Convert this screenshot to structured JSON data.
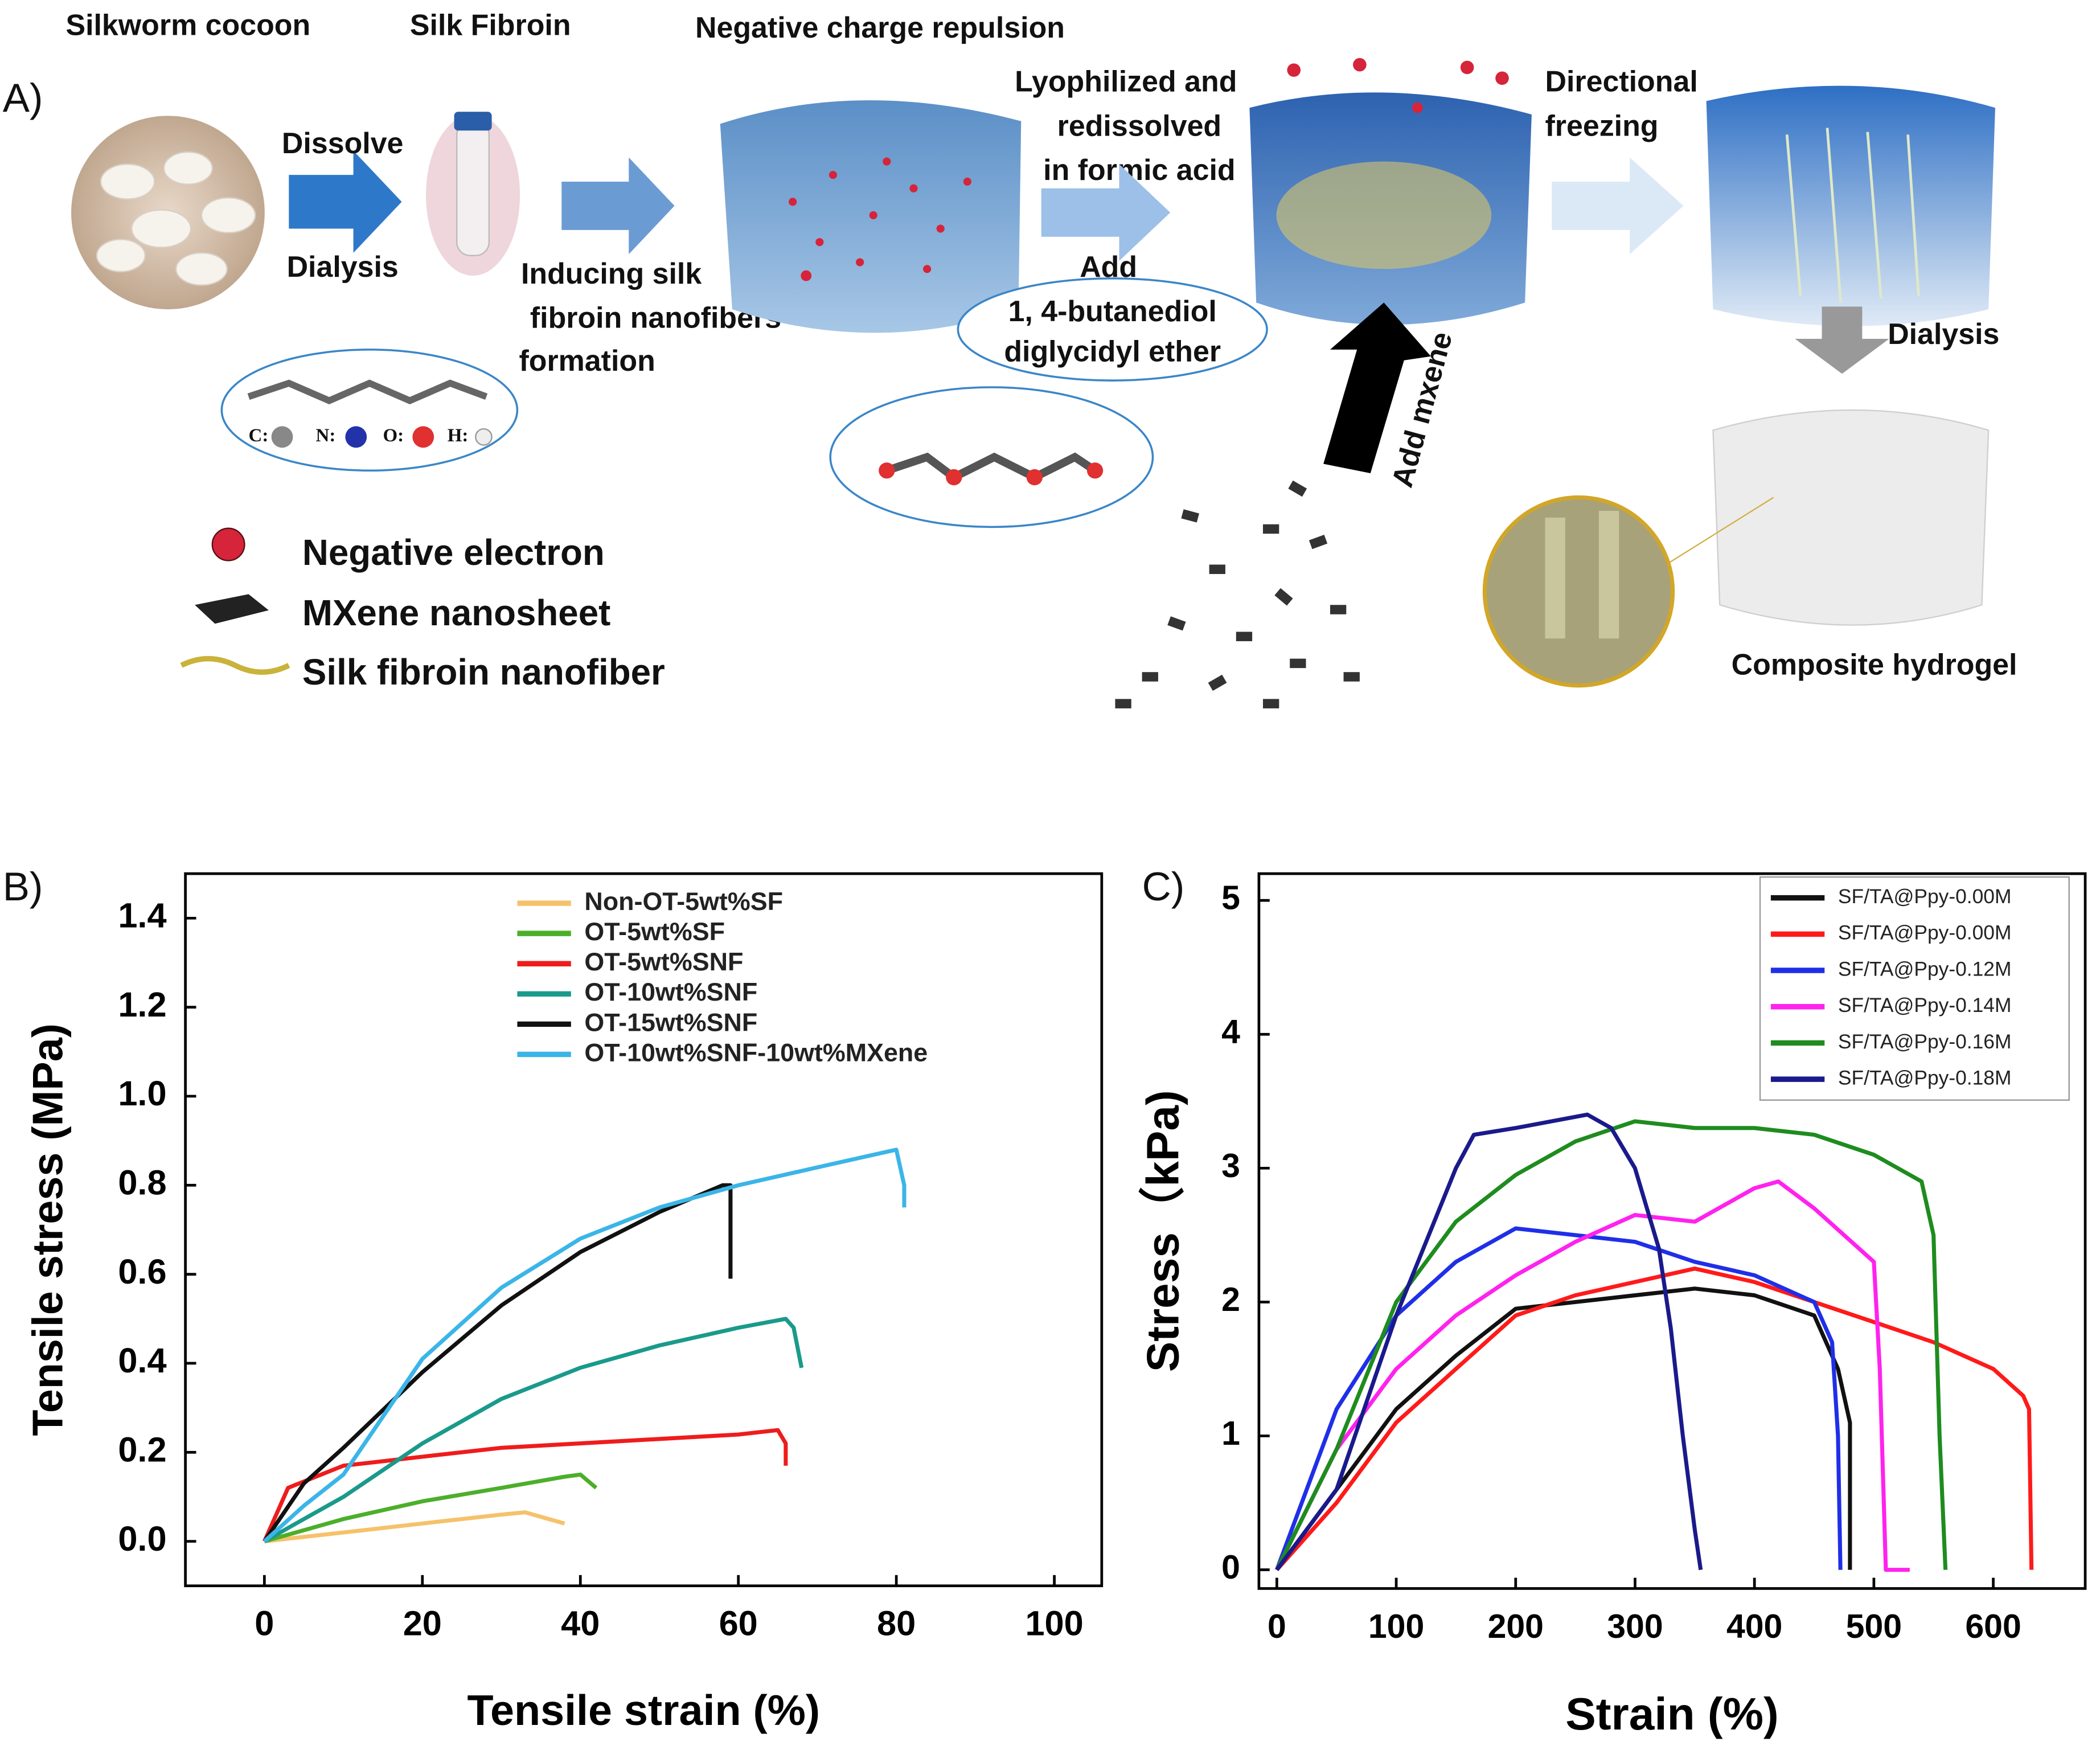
{
  "panel_labels": [
    "A)",
    "B)",
    "C)"
  ],
  "diagram": {
    "headers": [
      "Silkworm cocoon",
      "Silk Fibroin",
      "Negative charge repulsion"
    ],
    "dissolve": "Dissolve",
    "dialysis_first": "Dialysis",
    "inducing": [
      "Inducing silk",
      "fibroin nanofibers",
      "formation"
    ],
    "lyophilized": [
      "Lyophilized and",
      "redissolved",
      "in formic acid"
    ],
    "add": "Add",
    "crosslinker": [
      "1, 4-butanediol",
      "diglycidyl ether"
    ],
    "directional": [
      "Directional",
      "freezing"
    ],
    "add_mxene": "Add mxene",
    "dialysis_second": "Dialysis",
    "product": "Composite hydrogel",
    "atoms": [
      "C:",
      "N:",
      "O:",
      "H:"
    ],
    "legend": [
      "Negative electron",
      "MXene nanosheet",
      "Silk fibroin nanofiber"
    ]
  },
  "chart_data": [
    {
      "type": "line",
      "xlabel": "Tensile strain (%)",
      "ylabel": "Tensile stress (MPa)",
      "xlim": [
        -10,
        106
      ],
      "xticks": [
        0,
        20,
        40,
        60,
        80,
        100
      ],
      "ylim": [
        -0.1,
        1.5
      ],
      "yticks": [
        {
          "value": 0,
          "label": "0.0"
        },
        0.2,
        0.4,
        0.6,
        0.8,
        {
          "value": 1,
          "label": "1.0"
        },
        1.2,
        1.4
      ],
      "legend": "upper right",
      "series": [
        {
          "name": "Non-OT-5wt%SF",
          "color": "#f5c26b",
          "x": [
            0,
            10,
            20,
            30,
            33,
            36,
            38
          ],
          "values": [
            0,
            0.02,
            0.04,
            0.06,
            0.065,
            0.05,
            0.04
          ]
        },
        {
          "name": "OT-5wt%SF",
          "color": "#4caf2a",
          "x": [
            0,
            10,
            20,
            30,
            38,
            40,
            42
          ],
          "values": [
            0,
            0.05,
            0.09,
            0.12,
            0.145,
            0.15,
            0.12
          ]
        },
        {
          "name": "OT-5wt%SNF",
          "color": "#ee1c1c",
          "x": [
            0,
            3,
            10,
            20,
            30,
            40,
            50,
            60,
            65,
            66,
            66
          ],
          "values": [
            0,
            0.12,
            0.17,
            0.19,
            0.21,
            0.22,
            0.23,
            0.24,
            0.25,
            0.22,
            0.17
          ]
        },
        {
          "name": "OT-10wt%SNF",
          "color": "#1a9a8a",
          "x": [
            0,
            5,
            10,
            20,
            30,
            40,
            50,
            60,
            66,
            67,
            68
          ],
          "values": [
            0,
            0.05,
            0.1,
            0.22,
            0.32,
            0.39,
            0.44,
            0.48,
            0.5,
            0.48,
            0.39
          ]
        },
        {
          "name": "OT-15wt%SNF",
          "color": "#111111",
          "x": [
            0,
            5,
            10,
            20,
            30,
            40,
            50,
            58,
            59,
            59
          ],
          "values": [
            0,
            0.13,
            0.21,
            0.38,
            0.53,
            0.65,
            0.74,
            0.8,
            0.8,
            0.59
          ]
        },
        {
          "name": "OT-10wt%SNF-10wt%MXene",
          "color": "#3bb5e8",
          "x": [
            0,
            5,
            10,
            15,
            20,
            30,
            40,
            50,
            60,
            70,
            80,
            81,
            81
          ],
          "values": [
            0,
            0.08,
            0.15,
            0.28,
            0.41,
            0.57,
            0.68,
            0.75,
            0.8,
            0.84,
            0.88,
            0.8,
            0.75
          ]
        }
      ]
    },
    {
      "type": "line",
      "xlabel": "Strain (%)",
      "ylabel": "Stress（kPa)",
      "xlim": [
        -15,
        677
      ],
      "xticks": [
        0,
        100,
        200,
        300,
        400,
        500,
        600
      ],
      "ylim": [
        -0.14,
        5.2
      ],
      "yticks": [
        0,
        1,
        2,
        3,
        4,
        5
      ],
      "legend": "upper right",
      "legend_frame": true,
      "series": [
        {
          "name": "SF/TA@Ppy-0.00M",
          "color": "#111111",
          "x": [
            0,
            50,
            100,
            150,
            200,
            250,
            300,
            350,
            400,
            450,
            470,
            480,
            480
          ],
          "values": [
            0,
            0.6,
            1.2,
            1.6,
            1.95,
            2.0,
            2.05,
            2.1,
            2.05,
            1.9,
            1.5,
            1.1,
            0
          ]
        },
        {
          "name": "SF/TA@Ppy-0.00M",
          "color": "#ff1a1a",
          "x": [
            0,
            50,
            100,
            150,
            200,
            250,
            300,
            350,
            400,
            450,
            500,
            550,
            600,
            625,
            630,
            632
          ],
          "values": [
            0,
            0.5,
            1.1,
            1.5,
            1.9,
            2.05,
            2.15,
            2.25,
            2.15,
            2.0,
            1.85,
            1.7,
            1.5,
            1.3,
            1.2,
            0
          ]
        },
        {
          "name": "SF/TA@Ppy-0.12M",
          "color": "#1f2fe8",
          "x": [
            0,
            50,
            100,
            150,
            200,
            250,
            300,
            350,
            400,
            450,
            465,
            470,
            472
          ],
          "values": [
            0,
            1.2,
            1.9,
            2.3,
            2.55,
            2.5,
            2.45,
            2.3,
            2.2,
            2.0,
            1.7,
            1.0,
            0
          ]
        },
        {
          "name": "SF/TA@Ppy-0.14M",
          "color": "#ff22ee",
          "x": [
            0,
            50,
            100,
            150,
            200,
            250,
            300,
            350,
            400,
            420,
            450,
            500,
            505,
            510,
            530
          ],
          "values": [
            0,
            0.9,
            1.5,
            1.9,
            2.2,
            2.45,
            2.65,
            2.6,
            2.85,
            2.9,
            2.7,
            2.3,
            1.5,
            0,
            0
          ]
        },
        {
          "name": "SF/TA@Ppy-0.16M",
          "color": "#1e8c1e",
          "x": [
            0,
            50,
            100,
            150,
            200,
            250,
            300,
            350,
            400,
            450,
            500,
            540,
            550,
            555,
            560
          ],
          "values": [
            0,
            0.9,
            2.0,
            2.6,
            2.95,
            3.2,
            3.35,
            3.3,
            3.3,
            3.25,
            3.1,
            2.9,
            2.5,
            1.0,
            0
          ]
        },
        {
          "name": "SF/TA@Ppy-0.18M",
          "color": "#1a1a8c",
          "x": [
            0,
            50,
            100,
            150,
            165,
            200,
            260,
            280,
            300,
            320,
            330,
            340,
            350,
            355
          ],
          "values": [
            0,
            0.6,
            1.9,
            3.0,
            3.25,
            3.3,
            3.4,
            3.3,
            3.0,
            2.4,
            1.8,
            1.0,
            0.3,
            0
          ]
        }
      ]
    }
  ]
}
